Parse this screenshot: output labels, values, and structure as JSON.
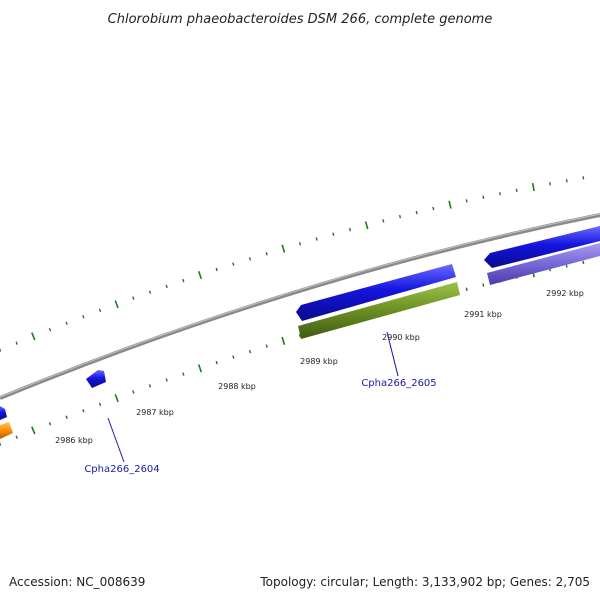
{
  "title": "Chlorobium phaeobacteroides DSM 266, complete genome",
  "footer": {
    "accession": "Accession: NC_008639",
    "summary": "Topology: circular; Length: 3,133,902 bp; Genes: 2,705"
  },
  "ticks": [
    {
      "label": "2986 kbp"
    },
    {
      "label": "2987 kbp"
    },
    {
      "label": "2988 kbp"
    },
    {
      "label": "2989 kbp"
    },
    {
      "label": "2990 kbp"
    },
    {
      "label": "2991 kbp"
    },
    {
      "label": "2992 kbp"
    }
  ],
  "gene_labels": [
    {
      "text": "Cpha266_2604"
    },
    {
      "text": "Cpha266_2605"
    }
  ],
  "colors": {
    "backbone": "#8a8a8a",
    "tick": "#1d7a1d",
    "cds_forward": "#1414e0",
    "cds_reverse": "#6a5acd",
    "rna": "#6b8e23",
    "orange": "#ff8c00",
    "label_line": "#1a1aa6"
  }
}
